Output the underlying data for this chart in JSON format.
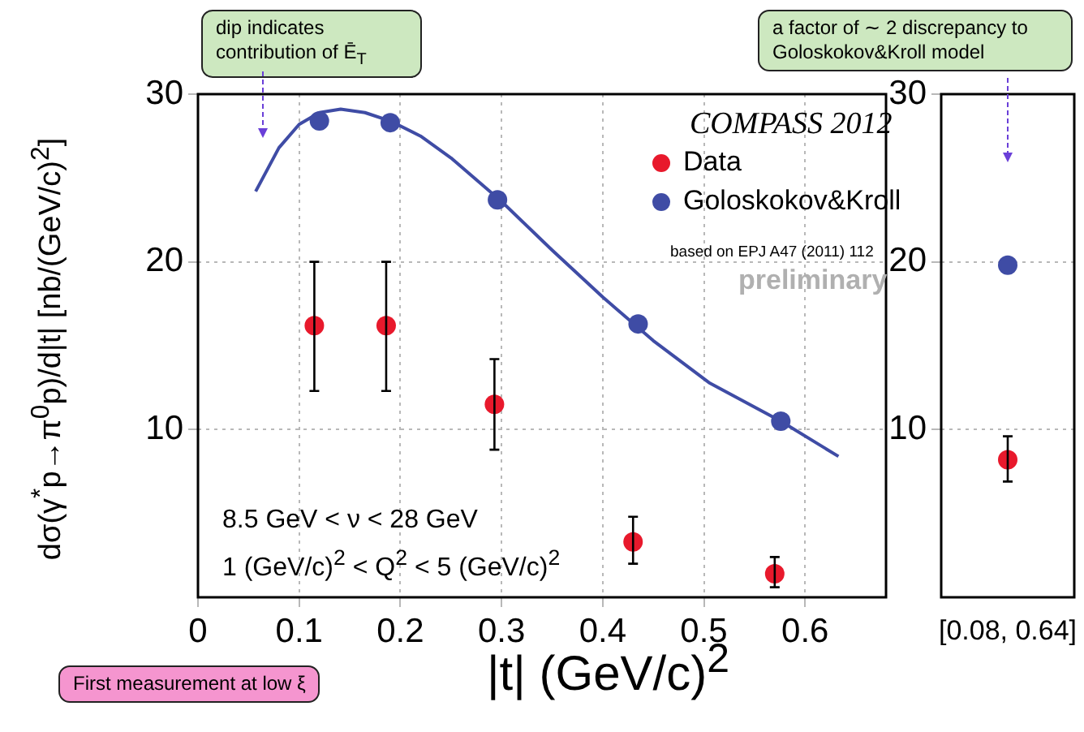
{
  "chart_data": [
    {
      "type": "scatter",
      "xlabel": "|t| (GeV/c)$^{2}$",
      "ylabel": "dσ(γ$^{*}$p→π$^{0}$p)/d|t|  [nb/(GeV/c)$^{2}$]",
      "x": [
        0.115,
        0.186,
        0.293,
        0.43,
        0.57
      ],
      "series": [
        {
          "name": "Data",
          "color": "#e8192c",
          "values": [
            16.2,
            16.2,
            11.5,
            3.3,
            1.4
          ],
          "errors": [
            [
              12.3,
              20.0
            ],
            [
              12.3,
              20.0
            ],
            [
              8.8,
              14.2
            ],
            [
              2.0,
              4.8
            ],
            [
              0.6,
              2.4
            ]
          ],
          "marker": "circle"
        },
        {
          "name": "Goloskokov&Kroll",
          "color": "#3f4ca5",
          "x": [
            0.12,
            0.19,
            0.296,
            0.435,
            0.576
          ],
          "values": [
            28.4,
            28.3,
            23.7,
            16.3,
            10.5
          ],
          "marker": "circle"
        },
        {
          "type": "line",
          "color": "#3f4ca5",
          "marker": "none",
          "line_style": "solid",
          "x": [
            0.057,
            0.08,
            0.1,
            0.12,
            0.141,
            0.165,
            0.19,
            0.22,
            0.25,
            0.3,
            0.35,
            0.4,
            0.45,
            0.505,
            0.576,
            0.633
          ],
          "values": [
            24.2,
            26.8,
            28.2,
            28.9,
            29.1,
            28.9,
            28.4,
            27.5,
            26.2,
            23.6,
            20.7,
            17.9,
            15.3,
            12.8,
            10.5,
            8.4
          ]
        }
      ],
      "xlim": [
        0,
        0.68
      ],
      "xticks": [
        0,
        0.1,
        0.2,
        0.3,
        0.4,
        0.5,
        0.6
      ],
      "ylim": [
        0,
        30
      ],
      "yticks": [
        10,
        20,
        30
      ],
      "grid": true,
      "legend": "top right",
      "annotations": [
        "dip indicates contribution of Ē$_{T}$",
        "COMPASS 2012",
        "based on EPJ A47 (2011) 112",
        "preliminary",
        "8.5 GeV < ν < 28 GeV",
        "1 (GeV/c)$^{2}$ < Q$^{2}$ < 5 (GeV/c)$^{2}$",
        "First measurement at low ξ"
      ]
    },
    {
      "type": "scatter",
      "categories": [
        "[0.08, 0.64]"
      ],
      "series": [
        {
          "color": "#e8192c",
          "values": [
            8.2
          ],
          "errors": [
            [
              6.9,
              9.6
            ]
          ],
          "marker": "circle"
        },
        {
          "color": "#3f4ca5",
          "values": [
            19.8
          ],
          "marker": "circle"
        }
      ],
      "ylim": [
        0,
        30
      ],
      "yticks": [
        10,
        20,
        30
      ],
      "grid": true,
      "legend": false,
      "annotations": [
        "a factor of ∼ 2 discrepancy to Goloskokov&Kroll model"
      ]
    }
  ]
}
